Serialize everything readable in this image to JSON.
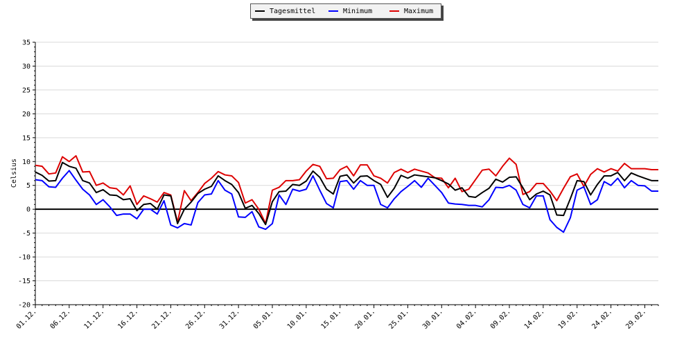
{
  "chart_data": {
    "type": "line",
    "title": "",
    "xlabel": "",
    "ylabel": "Celsius",
    "ylim": [
      -20,
      35
    ],
    "yticks": [
      -20,
      -15,
      -10,
      -5,
      0,
      5,
      10,
      15,
      20,
      25,
      30,
      35
    ],
    "grid": true,
    "legend_position": "top-center",
    "x_tick_labels": [
      "01.12.",
      "06.12.",
      "11.12.",
      "16.12.",
      "21.12.",
      "26.12.",
      "31.12.",
      "05.01.",
      "10.01.",
      "15.01.",
      "20.01.",
      "25.01.",
      "30.01.",
      "04.02.",
      "09.02.",
      "14.02.",
      "19.02.",
      "24.02.",
      "29.02."
    ],
    "series": [
      {
        "name": "Tagesmittel",
        "color": "#000000",
        "values": [
          7.8,
          7.1,
          5.9,
          6.0,
          9.8,
          9.0,
          8.6,
          6.0,
          5.5,
          3.5,
          4.1,
          3.0,
          2.9,
          2.0,
          2.2,
          -0.3,
          1.0,
          1.2,
          0.0,
          3.0,
          2.8,
          -3.0,
          0.0,
          1.5,
          3.3,
          4.2,
          4.8,
          7.0,
          6.0,
          5.2,
          3.5,
          0.2,
          0.8,
          -0.9,
          -3.2,
          1.6,
          3.7,
          3.8,
          5.2,
          5.0,
          5.9,
          8.0,
          6.7,
          4.2,
          3.2,
          6.9,
          7.2,
          5.5,
          6.9,
          7.0,
          6.0,
          5.2,
          2.5,
          4.4,
          7.1,
          6.5,
          7.2,
          7.0,
          6.8,
          6.6,
          6.0,
          5.3,
          4.0,
          4.5,
          2.7,
          2.5,
          3.5,
          4.4,
          6.3,
          5.7,
          6.7,
          6.8,
          4.5,
          2.0,
          3.2,
          3.8,
          3.0,
          -1.2,
          -1.3,
          2.2,
          6.0,
          5.8,
          3.0,
          5.2,
          7.0,
          7.0,
          7.7,
          6.0,
          7.6,
          7.0,
          6.5,
          6.0,
          6.0
        ],
        "labels": []
      },
      {
        "name": "Minimum",
        "color": "#0000ff",
        "values": [
          6.2,
          6.0,
          4.7,
          4.6,
          6.5,
          8.1,
          6.1,
          4.2,
          3.0,
          1.0,
          2.0,
          0.5,
          -1.3,
          -1.0,
          -1.0,
          -2.0,
          0.0,
          0.0,
          -1.0,
          1.8,
          -3.3,
          -3.9,
          -3.0,
          -3.3,
          1.4,
          3.0,
          3.2,
          6.0,
          4.0,
          3.2,
          -1.6,
          -1.7,
          -0.5,
          -3.7,
          -4.2,
          -3.0,
          3.0,
          1.0,
          4.2,
          3.8,
          4.2,
          7.0,
          4.0,
          1.2,
          0.3,
          5.8,
          6.0,
          4.2,
          6.0,
          5.0,
          5.0,
          1.0,
          0.3,
          2.2,
          3.7,
          4.8,
          6.0,
          4.6,
          6.5,
          5.0,
          3.5,
          1.3,
          1.1,
          1.0,
          0.8,
          0.8,
          0.5,
          2.0,
          4.6,
          4.5,
          5.0,
          4.0,
          1.0,
          0.3,
          2.8,
          2.8,
          -2.2,
          -3.8,
          -4.8,
          -1.8,
          4.0,
          4.7,
          1.0,
          2.0,
          5.8,
          5.0,
          6.5,
          4.5,
          6.0,
          5.0,
          4.9,
          3.8,
          3.8
        ],
        "labels": []
      },
      {
        "name": "Maximum",
        "color": "#dd0000",
        "values": [
          9.2,
          9.0,
          7.4,
          7.6,
          11.0,
          10.0,
          11.2,
          7.8,
          7.9,
          5.0,
          5.5,
          4.5,
          4.3,
          3.0,
          4.9,
          1.0,
          2.8,
          2.2,
          1.5,
          3.5,
          3.0,
          -2.7,
          3.9,
          1.8,
          3.5,
          5.4,
          6.5,
          7.9,
          7.2,
          7.0,
          5.6,
          1.3,
          2.0,
          0.0,
          -3.0,
          4.0,
          4.6,
          6.0,
          6.0,
          6.2,
          8.0,
          9.4,
          9.0,
          6.4,
          6.5,
          8.3,
          9.0,
          7.0,
          9.3,
          9.3,
          7.0,
          6.5,
          5.5,
          7.7,
          8.4,
          7.7,
          8.4,
          8.0,
          7.6,
          6.6,
          6.5,
          4.5,
          6.5,
          3.7,
          4.2,
          6.2,
          8.2,
          8.4,
          7.0,
          9.0,
          10.7,
          9.4,
          3.1,
          3.7,
          5.4,
          5.4,
          3.8,
          1.8,
          4.4,
          6.8,
          7.4,
          4.8,
          7.3,
          8.5,
          7.8,
          8.5,
          8.0,
          9.6,
          8.5,
          8.5,
          8.5,
          8.3,
          8.3
        ],
        "labels": []
      }
    ]
  }
}
